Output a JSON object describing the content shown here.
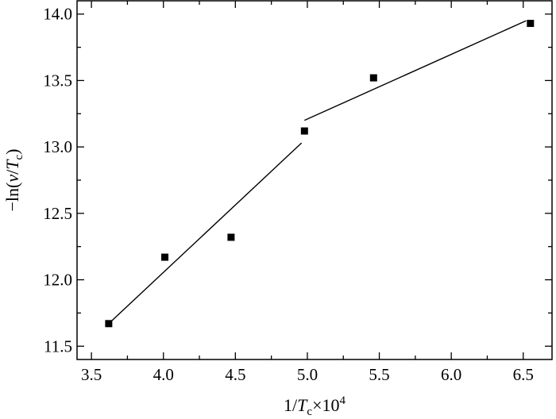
{
  "chart_data": {
    "type": "scatter",
    "xlabel": {
      "pre": "1/",
      "var": "T",
      "sub": "c",
      "post": "×10",
      "sup": "4"
    },
    "ylabel": {
      "pre": "−ln(",
      "var1": "v",
      "mid": "/",
      "var2": "T",
      "sub": "c",
      "post": ")"
    },
    "xlim": [
      3.4,
      6.7
    ],
    "ylim": [
      11.4,
      14.1
    ],
    "x_ticks": [
      3.5,
      4.0,
      4.5,
      5.0,
      5.5,
      6.0,
      6.5
    ],
    "x_tick_labels": [
      "3.5",
      "4.0",
      "4.5",
      "5.0",
      "5.5",
      "6.0",
      "6.5"
    ],
    "y_ticks": [
      11.5,
      12.0,
      12.5,
      13.0,
      13.5,
      14.0
    ],
    "y_tick_labels": [
      "11.5",
      "12.0",
      "12.5",
      "13.0",
      "13.5",
      "14.0"
    ],
    "x_minor_step": 0.25,
    "y_minor_step": 0.25,
    "grid": false,
    "points": [
      {
        "x": 3.62,
        "y": 11.67
      },
      {
        "x": 4.01,
        "y": 12.17
      },
      {
        "x": 4.47,
        "y": 12.32
      },
      {
        "x": 4.98,
        "y": 13.12
      },
      {
        "x": 5.46,
        "y": 13.52
      },
      {
        "x": 6.55,
        "y": 13.93
      }
    ],
    "fit_lines": [
      {
        "x": [
          3.63,
          4.96
        ],
        "y": [
          11.68,
          13.03
        ]
      },
      {
        "x": [
          4.98,
          6.52
        ],
        "y": [
          13.2,
          13.95
        ]
      }
    ],
    "marker_color": "#000000",
    "line_color": "#000000"
  }
}
